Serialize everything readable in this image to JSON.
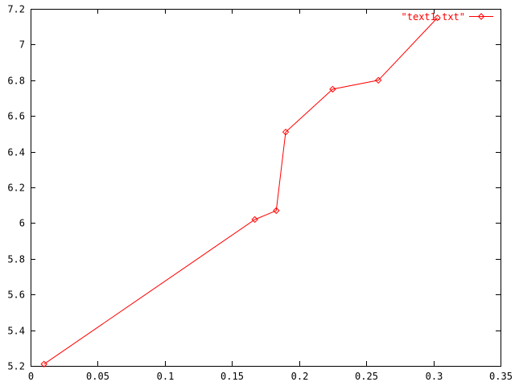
{
  "chart_data": {
    "type": "line",
    "title": "",
    "xlabel": "",
    "ylabel": "",
    "xlim": [
      0,
      0.35
    ],
    "ylim": [
      5.2,
      7.2
    ],
    "grid": false,
    "background_color": "#ffffff",
    "axis_color": "#000000",
    "legend": {
      "label": "\"text1.txt\"",
      "position": "top-right",
      "text_color": "#ff0000"
    },
    "x_ticks": [
      {
        "v": 0,
        "label": "0"
      },
      {
        "v": 0.05,
        "label": "0.05"
      },
      {
        "v": 0.1,
        "label": "0.1"
      },
      {
        "v": 0.15,
        "label": "0.15"
      },
      {
        "v": 0.2,
        "label": "0.2"
      },
      {
        "v": 0.25,
        "label": "0.25"
      },
      {
        "v": 0.3,
        "label": "0.3"
      },
      {
        "v": 0.35,
        "label": "0.35"
      }
    ],
    "y_ticks": [
      {
        "v": 5.2,
        "label": "5.2"
      },
      {
        "v": 5.4,
        "label": "5.4"
      },
      {
        "v": 5.6,
        "label": "5.6"
      },
      {
        "v": 5.8,
        "label": "5.8"
      },
      {
        "v": 6,
        "label": "6"
      },
      {
        "v": 6.2,
        "label": "6.2"
      },
      {
        "v": 6.4,
        "label": "6.4"
      },
      {
        "v": 6.6,
        "label": "6.6"
      },
      {
        "v": 6.8,
        "label": "6.8"
      },
      {
        "v": 7,
        "label": "7"
      },
      {
        "v": 7.2,
        "label": "7.2"
      }
    ],
    "series": [
      {
        "name": "\"text1.txt\"",
        "color": "#ff0000",
        "marker": "diamond",
        "points": [
          {
            "x": 0.01,
            "y": 5.21
          },
          {
            "x": 0.167,
            "y": 6.02
          },
          {
            "x": 0.183,
            "y": 6.07
          },
          {
            "x": 0.19,
            "y": 6.51
          },
          {
            "x": 0.225,
            "y": 6.75
          },
          {
            "x": 0.259,
            "y": 6.8
          },
          {
            "x": 0.303,
            "y": 7.15
          }
        ]
      }
    ]
  }
}
